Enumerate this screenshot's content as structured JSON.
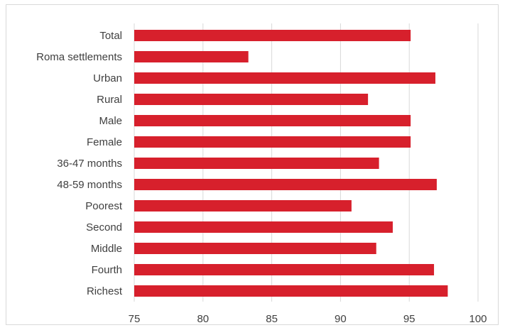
{
  "chart_data": {
    "type": "bar",
    "orientation": "horizontal",
    "title": "",
    "xlabel": "",
    "ylabel": "",
    "categories": [
      "Total",
      "Roma settlements",
      "Urban",
      "Rural",
      "Male",
      "Female",
      "36-47 months",
      "48-59 months",
      "Poorest",
      "Second",
      "Middle",
      "Fourth",
      "Richest"
    ],
    "values": [
      95.1,
      83.3,
      96.9,
      92.0,
      95.1,
      95.1,
      92.8,
      97.0,
      90.8,
      93.8,
      92.6,
      96.8,
      97.8
    ],
    "xlim": [
      75,
      100
    ],
    "xticks": [
      "75",
      "80",
      "85",
      "90",
      "95",
      "100"
    ],
    "grid": "vertical",
    "legend": "none",
    "bar_color": "#d7202c"
  }
}
